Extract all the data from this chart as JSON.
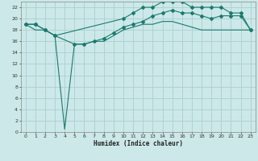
{
  "xlabel": "Humidex (Indice chaleur)",
  "x_values": [
    0,
    1,
    2,
    3,
    4,
    5,
    6,
    7,
    8,
    9,
    10,
    11,
    12,
    13,
    14,
    15,
    16,
    17,
    18,
    19,
    20,
    21,
    22,
    23
  ],
  "curve_top": [
    19,
    19,
    18,
    17,
    null,
    null,
    null,
    null,
    null,
    null,
    20,
    21,
    22,
    22,
    23,
    23,
    23,
    22,
    22,
    22,
    22,
    21,
    21,
    18
  ],
  "curve_mid": [
    19,
    19,
    18,
    17,
    null,
    15.5,
    15.5,
    16,
    16.5,
    17.5,
    18.5,
    19,
    19.5,
    20.5,
    21,
    21.5,
    21,
    21,
    20.5,
    20,
    20.5,
    20.5,
    20.5,
    18
  ],
  "curve_bot": [
    19,
    18,
    18,
    17,
    0.5,
    15.5,
    15.5,
    16,
    16,
    17,
    18,
    18.5,
    19,
    19,
    19.5,
    19.5,
    19,
    18.5,
    18,
    18,
    18,
    18,
    18,
    18
  ],
  "bg_color": "#cce8e8",
  "line_color": "#1a7a6e",
  "grid_color": "#aacfcf",
  "ylim": [
    0,
    23
  ],
  "xlim": [
    -0.5,
    23.5
  ],
  "yticks": [
    0,
    2,
    4,
    6,
    8,
    10,
    12,
    14,
    16,
    18,
    20,
    22
  ],
  "xticks": [
    0,
    1,
    2,
    3,
    4,
    5,
    6,
    7,
    8,
    9,
    10,
    11,
    12,
    13,
    14,
    15,
    16,
    17,
    18,
    19,
    20,
    21,
    22,
    23
  ]
}
